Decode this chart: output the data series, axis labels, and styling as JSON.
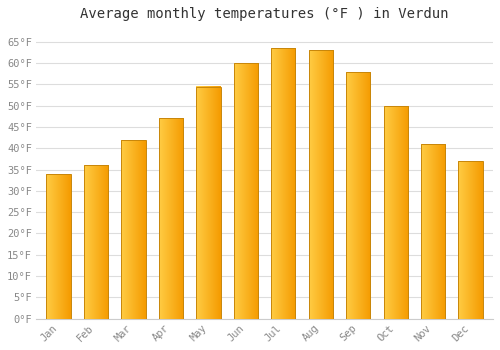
{
  "title": "Average monthly temperatures (°F ) in Verdun",
  "months": [
    "Jan",
    "Feb",
    "Mar",
    "Apr",
    "May",
    "Jun",
    "Jul",
    "Aug",
    "Sep",
    "Oct",
    "Nov",
    "Dec"
  ],
  "values": [
    34,
    36,
    42,
    47,
    54.5,
    60,
    63.5,
    63,
    58,
    50,
    41,
    37
  ],
  "bar_color_left": "#FFCC44",
  "bar_color_right": "#F59B00",
  "bar_edge_color": "#C8860A",
  "background_color": "#FFFFFF",
  "plot_bg_color": "#FFFFFF",
  "grid_color": "#DDDDDD",
  "ylim": [
    0,
    68
  ],
  "yticks": [
    0,
    5,
    10,
    15,
    20,
    25,
    30,
    35,
    40,
    45,
    50,
    55,
    60,
    65
  ],
  "title_fontsize": 10,
  "tick_fontsize": 7.5,
  "tick_font_color": "#888888",
  "title_font_color": "#333333",
  "bar_width": 0.65
}
